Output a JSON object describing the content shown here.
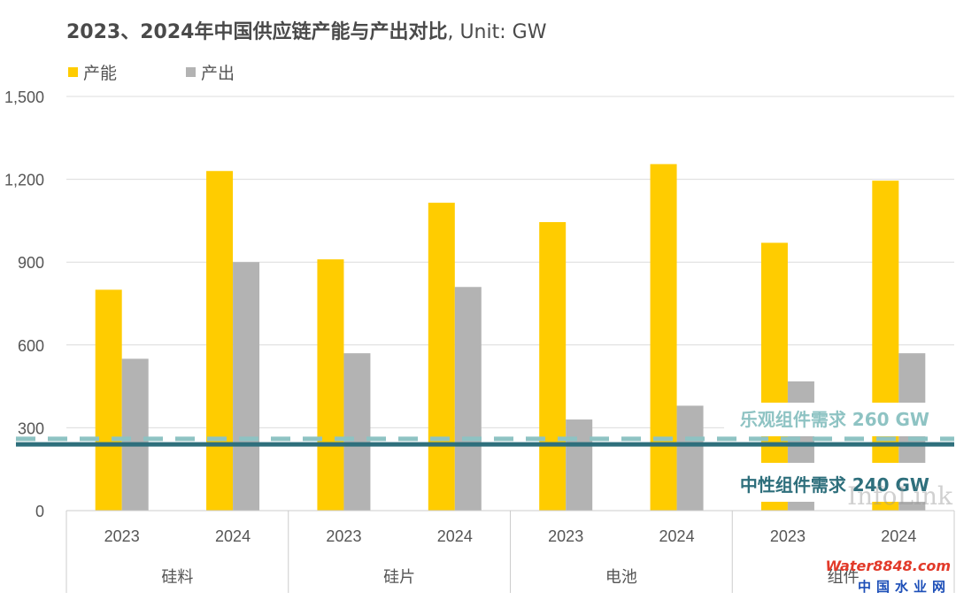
{
  "chart_data": {
    "type": "bar",
    "title": "2023、2024年中国供应链产能与产出对比",
    "unit_label": ", Unit: GW",
    "groups": [
      "硅料",
      "硅片",
      "电池",
      "组件"
    ],
    "years": [
      "2023",
      "2024"
    ],
    "series": [
      {
        "name": "产能",
        "color": "#FFCC00",
        "values": [
          [
            800,
            1230
          ],
          [
            910,
            1115
          ],
          [
            1045,
            1255
          ],
          [
            970,
            1195
          ]
        ]
      },
      {
        "name": "产出",
        "color": "#B3B3B3",
        "values": [
          [
            550,
            900
          ],
          [
            570,
            810
          ],
          [
            330,
            380
          ],
          [
            468,
            570
          ]
        ]
      }
    ],
    "ylim": [
      0,
      1500
    ],
    "yticks": [
      0,
      300,
      600,
      900,
      1200,
      1500
    ],
    "ytick_labels": [
      "0",
      "300",
      "600",
      "900",
      "1,200",
      "1,500"
    ],
    "grid": true,
    "legend_position": "top-left",
    "reference_lines": [
      {
        "label": "乐观组件需求 260 GW",
        "value": 260,
        "style": "dashed",
        "color": "#8EC3C3"
      },
      {
        "label": "中性组件需求 240 GW",
        "value": 240,
        "style": "solid",
        "color": "#2E6F7C"
      }
    ]
  },
  "watermarks": {
    "infolink": "InfoLink",
    "site_logo": "Water8848.com",
    "site_name": "中国水业网"
  }
}
